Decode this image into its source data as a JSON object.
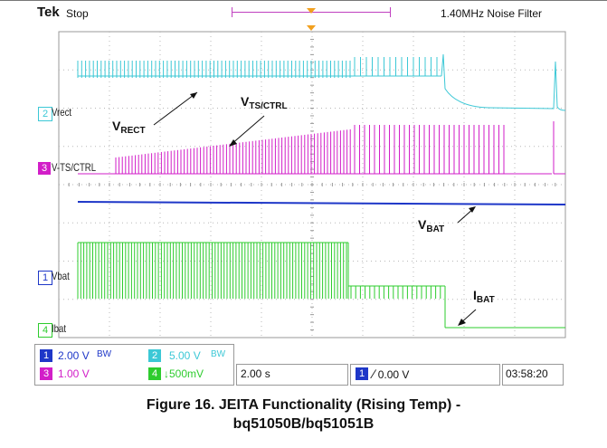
{
  "header": {
    "brand": "Tek",
    "state": "Stop",
    "filter": "1.40MHz  Noise Filter"
  },
  "channels": [
    {
      "num": "2",
      "label": "Vrect",
      "color": "#3cc8d6"
    },
    {
      "num": "3",
      "label": "V-TS/CTRL",
      "color": "#d21ec8"
    },
    {
      "num": "1",
      "label": "Vbat",
      "color": "#1e37c8"
    },
    {
      "num": "4",
      "label": "Ibat",
      "color": "#2ecc2e"
    }
  ],
  "annotations": {
    "vrect": {
      "main": "V",
      "sub": "RECT"
    },
    "vts": {
      "main": "V",
      "sub": "TS/CTRL"
    },
    "vbat": {
      "main": "V",
      "sub": "BAT"
    },
    "ibat": {
      "main": "I",
      "sub": "BAT"
    }
  },
  "status": {
    "ch1_scale": "2.00 V",
    "ch2_scale": "5.00 V",
    "ch3_scale": "1.00 V",
    "ch4_scale": "500mV",
    "bw": "BW",
    "timebase": "2.00 s",
    "trigger_ch": "1",
    "trigger_level": "0.00 V",
    "clock": "03:58:20"
  },
  "caption": {
    "line1": "Figure 16. JEITA Functionality (Rising Temp) -",
    "line2": "bq51050B/bq51051B"
  },
  "colors": {
    "ch1": "#1e37c8",
    "ch2": "#3cc8d6",
    "ch3": "#d21ec8",
    "ch4": "#2ecc2e",
    "trigger_marker": "#f2a01e",
    "record_bar": "#c040c0"
  }
}
